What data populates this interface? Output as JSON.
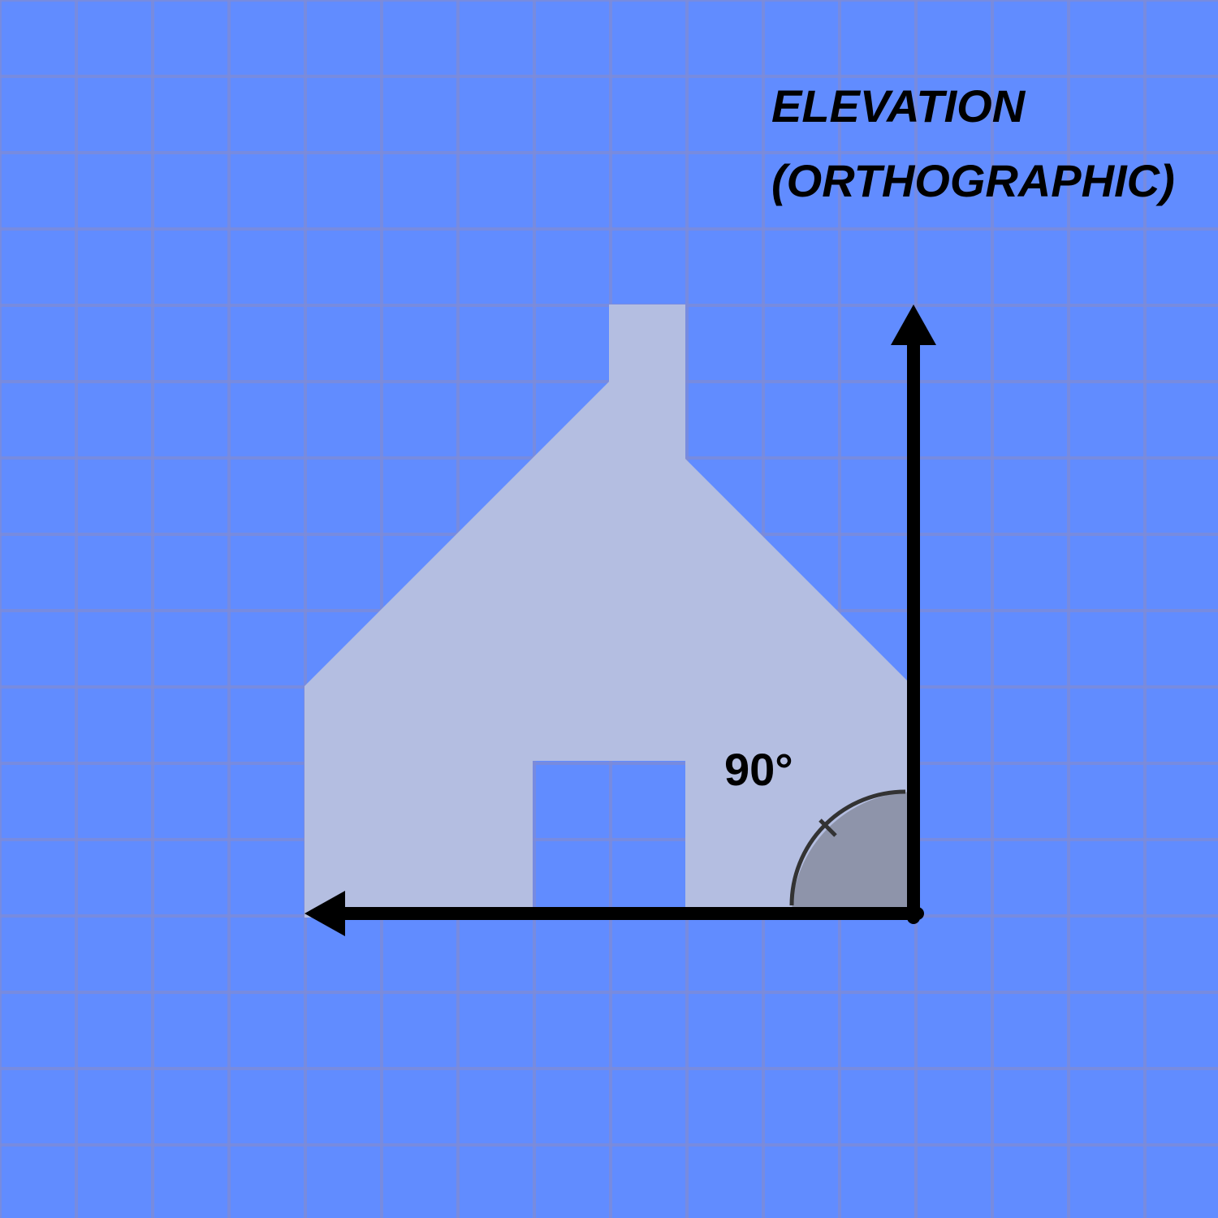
{
  "title": {
    "line1": "ELEVATION",
    "line2": "(ORTHOGRAPHIC)"
  },
  "angle_label": "90°",
  "colors": {
    "background": "#618cff",
    "grid": "#7f8bd6",
    "house": "#b6bfe0",
    "axes": "#000000",
    "angle_fill": "#8e94aa",
    "angle_stroke": "#333333"
  }
}
